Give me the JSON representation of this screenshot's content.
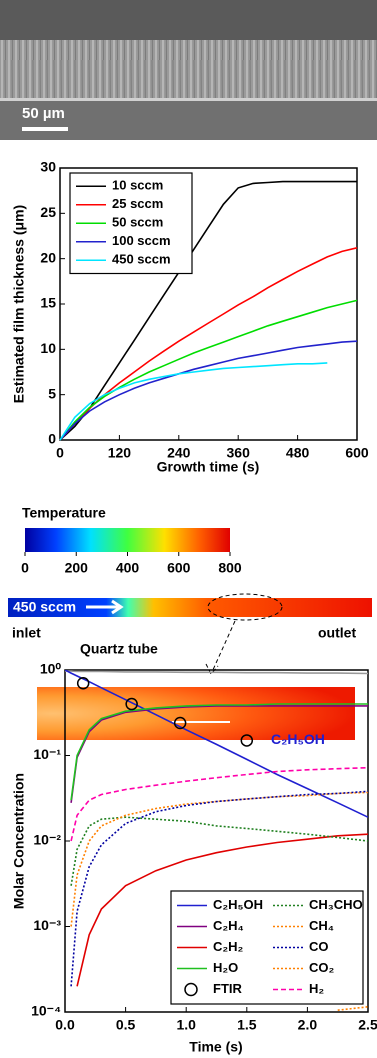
{
  "sem_image": {
    "scale_bar": "50 µm"
  },
  "temperature_map": {
    "title": "Temperature",
    "range": [
      0,
      800
    ],
    "ticks": [
      0,
      200,
      400,
      600,
      800
    ],
    "flow_label": "450 sccm",
    "inlet": "inlet",
    "outlet": "outlet",
    "tube_label": "Quartz tube"
  },
  "chart_data": [
    {
      "type": "line",
      "x_label": "Growth time (s)",
      "y_label": "Estimated film thickness (μm)",
      "x": [
        0,
        30,
        60,
        90,
        120,
        150,
        180,
        210,
        240,
        270,
        300,
        330,
        360,
        390,
        420,
        450,
        480,
        510,
        540,
        570,
        600
      ],
      "xlim": [
        0,
        600
      ],
      "xticks": [
        0,
        120,
        240,
        360,
        480,
        600
      ],
      "ylim": [
        0,
        30
      ],
      "yticks": [
        0,
        5,
        10,
        15,
        20,
        25,
        30
      ],
      "legend": "upper left",
      "series": [
        {
          "name": "10 sccm",
          "color": "#000000",
          "values": [
            0,
            1.5,
            3.5,
            6,
            8.5,
            11,
            13.5,
            16,
            18.5,
            21,
            23.5,
            26,
            27.8,
            28.3,
            28.4,
            28.5,
            28.5,
            28.5,
            28.5,
            28.5,
            28.5
          ]
        },
        {
          "name": "25 sccm",
          "color": "#ff0000",
          "values": [
            0,
            1.8,
            3.5,
            5,
            6.3,
            7.5,
            8.7,
            9.8,
            10.9,
            11.9,
            12.9,
            13.9,
            14.9,
            15.8,
            16.8,
            17.7,
            18.6,
            19.4,
            20.2,
            20.8,
            21.2
          ]
        },
        {
          "name": "50 sccm",
          "color": "#00dd00",
          "values": [
            0,
            2,
            3.6,
            4.8,
            5.8,
            6.7,
            7.5,
            8.2,
            8.9,
            9.6,
            10.2,
            10.8,
            11.4,
            12,
            12.6,
            13.1,
            13.6,
            14.1,
            14.6,
            15,
            15.4
          ]
        },
        {
          "name": "100 sccm",
          "color": "#2222cc",
          "values": [
            0,
            1.8,
            3.2,
            4.2,
            5,
            5.7,
            6.3,
            6.8,
            7.3,
            7.8,
            8.2,
            8.6,
            9,
            9.3,
            9.6,
            9.9,
            10.2,
            10.4,
            10.6,
            10.8,
            10.9
          ]
        },
        {
          "name": "450 sccm",
          "color": "#00e5ff",
          "values": [
            0,
            2.5,
            4,
            5,
            5.7,
            6.3,
            6.7,
            7,
            7.3,
            7.5,
            7.7,
            7.9,
            8,
            8.1,
            8.2,
            8.3,
            8.4,
            8.4,
            8.5,
            null,
            null
          ]
        }
      ]
    },
    {
      "type": "line",
      "x_label": "Time (s)",
      "y_label": "Molar Concentration",
      "y_scale": "log",
      "x": [
        0,
        0.05,
        0.1,
        0.2,
        0.3,
        0.5,
        0.75,
        1,
        1.25,
        1.5,
        1.75,
        2,
        2.25,
        2.5
      ],
      "xlim": [
        0,
        2.5
      ],
      "xticks": [
        {
          "value": 0,
          "label": "0.0"
        },
        0.5,
        {
          "value": 1,
          "label": "1.0"
        },
        1.5,
        {
          "value": 2,
          "label": "2.0"
        },
        2.5
      ],
      "ylim": [
        0.0001,
        1
      ],
      "yticks": [
        {
          "value": 0.0001,
          "label": "10⁻⁴"
        },
        {
          "value": 0.001,
          "label": "10⁻³"
        },
        {
          "value": 0.01,
          "label": "10⁻²"
        },
        {
          "value": 0.1,
          "label": "10⁻¹"
        },
        {
          "value": 1,
          "label": "10⁰"
        }
      ],
      "legend": "lower right",
      "legend_columns": 2,
      "annotation": {
        "text": "C₂H₅OH",
        "x": 1.7,
        "y": 0.15,
        "color": "#2020d0"
      },
      "series": [
        {
          "color": "#999999",
          "dash": "solid",
          "values": [
            0.97,
            0.97,
            0.96,
            0.96,
            0.96,
            0.95,
            0.95,
            0.94,
            0.94,
            0.93,
            0.93,
            0.92,
            0.92,
            0.91
          ]
        },
        {
          "name": "C₂H₅OH",
          "color": "#2020d0",
          "dash": "solid",
          "values": [
            1,
            0.92,
            0.85,
            0.73,
            0.62,
            0.45,
            0.3,
            0.2,
            0.135,
            0.09,
            0.06,
            0.041,
            0.028,
            0.019
          ]
        },
        {
          "name": "C₂H₄",
          "color": "#800080",
          "dash": "solid",
          "values": [
            null,
            0.028,
            0.095,
            0.19,
            0.26,
            0.32,
            0.35,
            0.37,
            0.38,
            0.38,
            0.38,
            0.38,
            0.38,
            0.38
          ]
        },
        {
          "name": "C₂H₂",
          "color": "#e00000",
          "dash": "solid",
          "values": [
            null,
            null,
            0.0002,
            0.0008,
            0.0016,
            0.003,
            0.0045,
            0.006,
            0.0073,
            0.0085,
            0.0096,
            0.0105,
            0.0115,
            0.012
          ]
        },
        {
          "name": "H₂O",
          "color": "#20c020",
          "dash": "solid",
          "values": [
            null,
            0.03,
            0.1,
            0.2,
            0.27,
            0.33,
            0.36,
            0.38,
            0.39,
            0.39,
            0.4,
            0.4,
            0.4,
            0.4
          ]
        },
        {
          "name": "CH₃CHO",
          "color": "#208020",
          "dash": "dotted",
          "values": [
            null,
            0.003,
            0.008,
            0.015,
            0.018,
            0.019,
            0.018,
            0.017,
            0.015,
            0.014,
            0.013,
            0.012,
            0.011,
            0.01
          ]
        },
        {
          "name": "CH₄",
          "color": "#ff8000",
          "dash": "dotted",
          "values": [
            null,
            0.001,
            0.004,
            0.01,
            0.015,
            0.02,
            0.024,
            0.027,
            0.029,
            0.031,
            0.033,
            0.034,
            0.036,
            0.037
          ]
        },
        {
          "name": "CO",
          "color": "#0000a0",
          "dash": "dotted",
          "values": [
            null,
            0.0002,
            0.0015,
            0.005,
            0.009,
            0.016,
            0.022,
            0.026,
            0.029,
            0.031,
            0.033,
            0.035,
            0.036,
            0.038
          ]
        },
        {
          "name": "CO₂",
          "color": "#ff8000",
          "dash": "dotted",
          "values": [
            null,
            null,
            null,
            null,
            null,
            null,
            null,
            null,
            null,
            null,
            null,
            null,
            0.000105,
            0.000115
          ]
        },
        {
          "name": "H₂",
          "color": "#ff00aa",
          "dash": "dashed",
          "values": [
            null,
            0.01,
            0.02,
            0.03,
            0.035,
            0.04,
            0.045,
            0.05,
            0.055,
            0.06,
            0.065,
            0.068,
            0.07,
            0.072
          ]
        }
      ],
      "points": {
        "name": "FTIR",
        "x": [
          0.15,
          0.55,
          0.95,
          1.5
        ],
        "values": [
          0.7,
          0.4,
          0.24,
          0.15
        ]
      }
    }
  ]
}
